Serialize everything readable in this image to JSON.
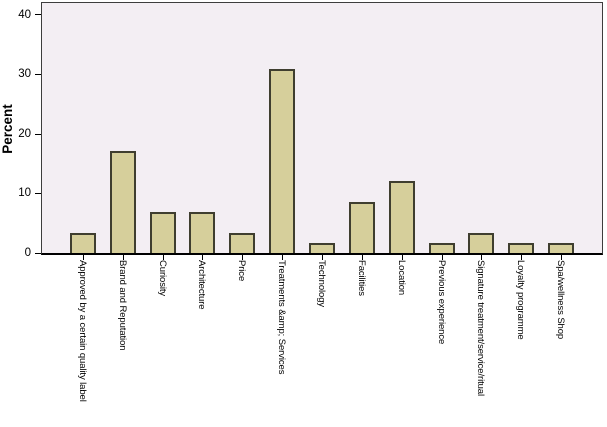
{
  "chart_data": {
    "type": "bar",
    "title": "",
    "xlabel": "",
    "ylabel": "Percent",
    "categories": [
      "Approved by a certain quality label",
      "Brand and Reputation",
      "Curiosity",
      "Architecture",
      "Price",
      "Treatments &amp; Services",
      "Technology",
      "Facilities",
      "Location",
      "Previous experience",
      "Signature treatment/service/ritual",
      "Loyalty programme",
      "Spa/wellness Shop"
    ],
    "values": [
      3.4,
      17.2,
      6.9,
      6.9,
      3.4,
      31,
      1.7,
      8.6,
      12.1,
      1.7,
      3.4,
      1.7,
      1.7
    ],
    "ylim": [
      0,
      42
    ],
    "yticks": [
      0,
      10,
      20,
      30,
      40
    ],
    "grid": false,
    "legend": false,
    "layout": {
      "x_label_rotation_deg": 90,
      "legend_position": "none"
    },
    "colors": {
      "bar_fill": "#d6cf9b",
      "bar_border": "#3f3e2f",
      "plot_bg": "#f3eef3",
      "frame": "#3d3d3d",
      "axis": "#000000",
      "canvas_bg": "#ffffff"
    }
  }
}
